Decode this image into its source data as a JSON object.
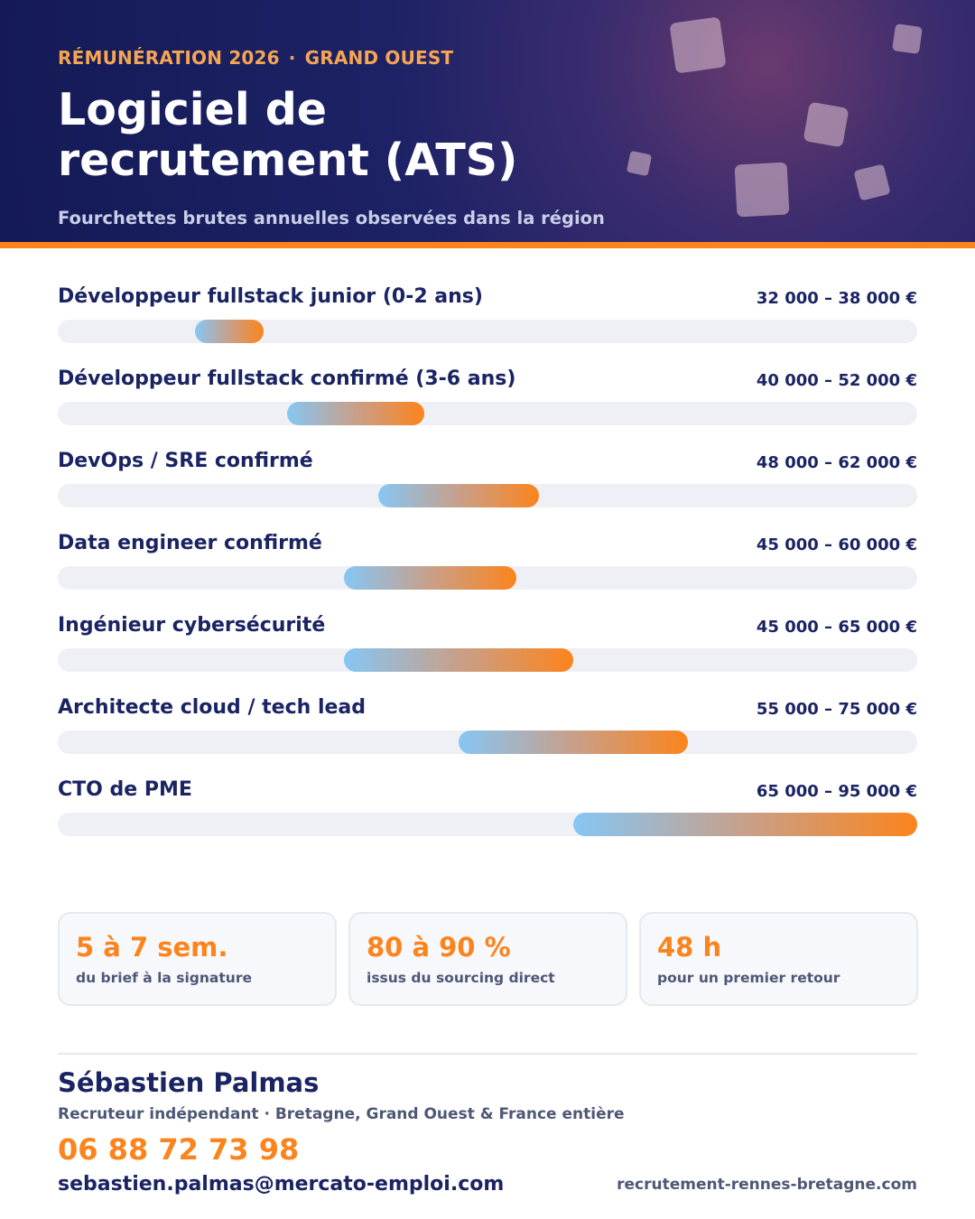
{
  "header": {
    "kicker_left": "RÉMUNÉRATION 2026",
    "kicker_separator": "·",
    "kicker_right": "GRAND OUEST",
    "title": "Logiciel de recrutement (ATS)",
    "subtitle": "Fourchettes brutes annuelles observées dans la région"
  },
  "salary_rows": [
    {
      "label": "Développeur fullstack junior (0-2 ans)",
      "range": "32 000 – 38 000 €",
      "min": 32000,
      "max": 38000
    },
    {
      "label": "Développeur fullstack confirmé (3-6 ans)",
      "range": "40 000 – 52 000 €",
      "min": 40000,
      "max": 52000
    },
    {
      "label": "DevOps / SRE confirmé",
      "range": "48 000 – 62 000 €",
      "min": 48000,
      "max": 62000
    },
    {
      "label": "Data engineer confirmé",
      "range": "45 000 – 60 000 €",
      "min": 45000,
      "max": 60000
    },
    {
      "label": "Ingénieur cybersécurité",
      "range": "45 000 – 65 000 €",
      "min": 45000,
      "max": 65000
    },
    {
      "label": "Architecte cloud / tech lead",
      "range": "55 000 – 75 000 €",
      "min": 55000,
      "max": 75000
    },
    {
      "label": "CTO de PME",
      "range": "65 000 – 95 000 €",
      "min": 65000,
      "max": 95000
    }
  ],
  "stats": [
    {
      "value": "5 à 7 sem.",
      "caption": "du brief à la signature"
    },
    {
      "value": "80 à 90 %",
      "caption": "issus du sourcing direct"
    },
    {
      "value": "48 h",
      "caption": "pour un premier retour"
    }
  ],
  "contact": {
    "name": "Sébastien Palmas",
    "role": "Recruteur indépendant · Bretagne, Grand Ouest & France entière",
    "phone": "06 88 72 73 98",
    "email": "sebastien.palmas@mercato-emploi.com",
    "website": "recrutement-rennes-bretagne.com"
  },
  "colors": {
    "accent": "#fb841c",
    "navy": "#1b2463",
    "bar_start": "#86c6f4",
    "bar_end": "#fb841c"
  }
}
